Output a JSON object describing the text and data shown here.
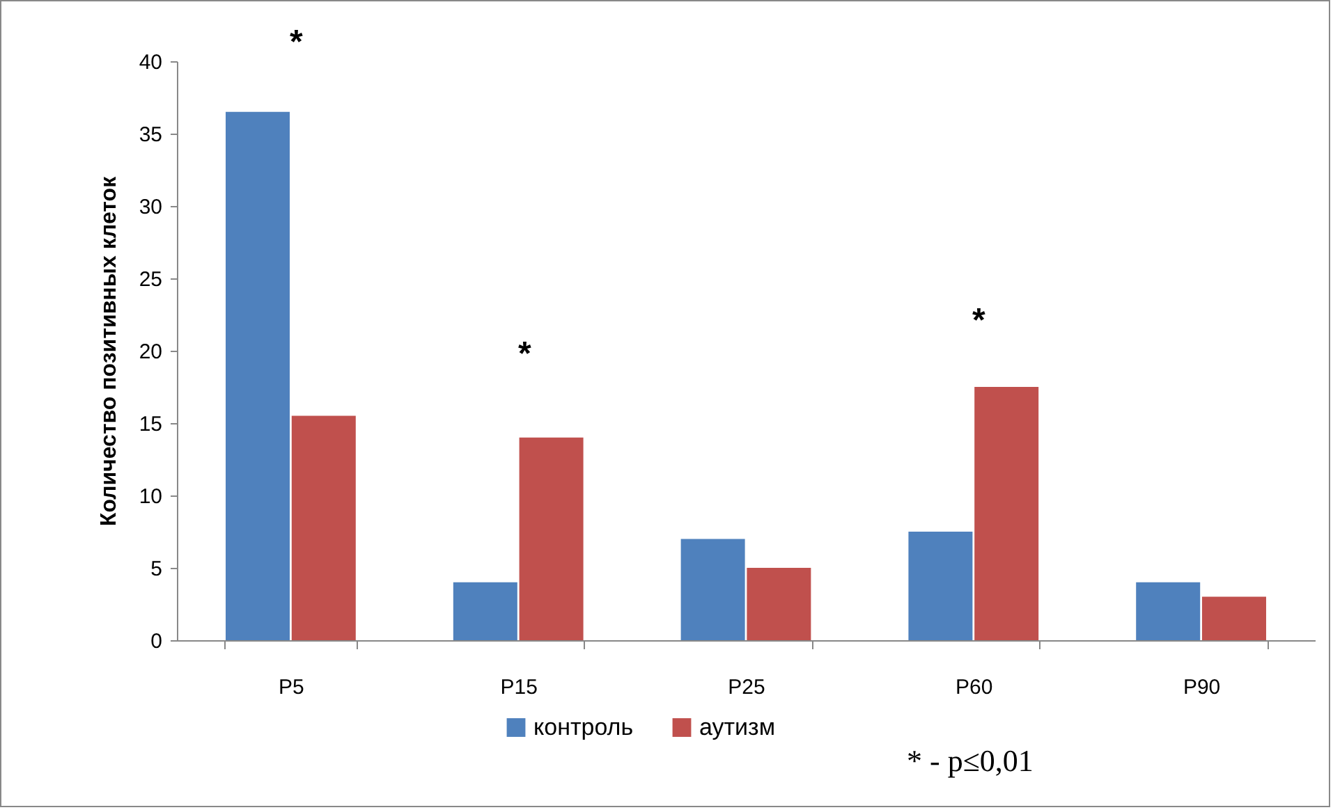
{
  "chart_data": {
    "type": "bar",
    "ylabel": "Количество позитивных клеток",
    "categories": [
      "P5",
      "P15",
      "P25",
      "P60",
      "P90"
    ],
    "series": [
      {
        "name": "контроль",
        "color": "#4f81bd",
        "values": [
          36.5,
          4,
          7,
          7.5,
          4
        ]
      },
      {
        "name": "аутизм",
        "color": "#c0504d",
        "values": [
          15.5,
          14,
          5,
          17.5,
          3
        ]
      }
    ],
    "ylim": [
      0,
      40
    ],
    "yticks": [
      0,
      5,
      10,
      15,
      20,
      25,
      30,
      35,
      40
    ],
    "grid": false,
    "legend": "bottom",
    "annotations": [
      "*",
      "*",
      "*",
      "* - p≤0,01"
    ]
  }
}
